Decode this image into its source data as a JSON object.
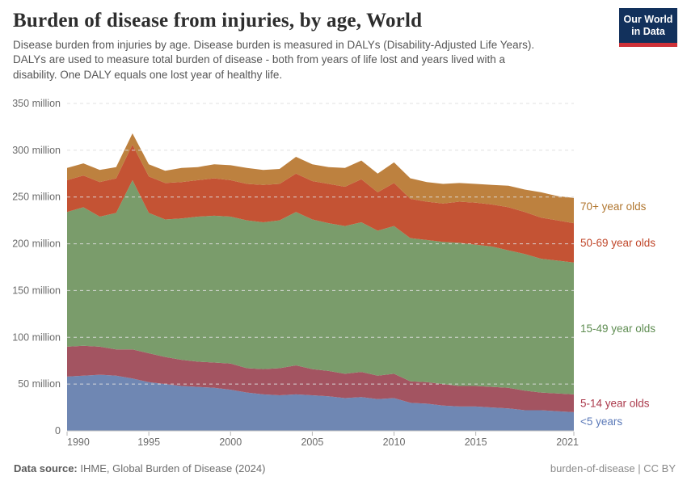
{
  "header": {
    "title": "Burden of disease from injuries, by age, World",
    "subtitle_lines": [
      "Disease burden from injuries by age. Disease burden is measured in DALYs (Disability-Adjusted Life Years).",
      "DALYs are used to measure total burden of disease - both from years of life lost and years lived with a",
      "disability. One DALY equals one lost year of healthy life."
    ],
    "logo": {
      "line1": "Our World",
      "line2": "in Data",
      "bg_color": "#12315c",
      "accent_color": "#ce3138"
    }
  },
  "footer": {
    "datasource_label": "Data source:",
    "datasource_value": " IHME, Global Burden of Disease (2024)",
    "note_right": "burden-of-disease | CC BY"
  },
  "chart_data": {
    "type": "area",
    "stacked": true,
    "title": "Burden of disease from injuries, by age, World",
    "xlabel": "",
    "ylabel": "",
    "values_unit": "million DALYs",
    "grid": "dashed-horizontal",
    "legend_position": "right-edge-labels",
    "ylim": [
      0,
      350
    ],
    "x": [
      1990,
      1991,
      1992,
      1993,
      1994,
      1995,
      1996,
      1997,
      1998,
      1999,
      2000,
      2001,
      2002,
      2003,
      2004,
      2005,
      2006,
      2007,
      2008,
      2009,
      2010,
      2011,
      2012,
      2013,
      2014,
      2015,
      2016,
      2017,
      2018,
      2019,
      2020,
      2021
    ],
    "xticks": [
      1990,
      1995,
      2000,
      2005,
      2010,
      2015,
      2021
    ],
    "yticks": [
      {
        "value": 0,
        "label": "0"
      },
      {
        "value": 50,
        "label": "50 million"
      },
      {
        "value": 100,
        "label": "100 million"
      },
      {
        "value": 150,
        "label": "150 million"
      },
      {
        "value": 200,
        "label": "200 million"
      },
      {
        "value": 250,
        "label": "250 million"
      },
      {
        "value": 300,
        "label": "300 million"
      },
      {
        "value": 350,
        "label": "350 million"
      }
    ],
    "series": [
      {
        "name": "<5 years",
        "color": "#6f87b3",
        "label_color": "#5b79b8",
        "values": [
          58,
          59,
          60,
          59,
          56,
          52,
          50,
          48,
          47,
          46,
          44,
          41,
          39,
          38,
          39,
          38,
          37,
          35,
          36,
          34,
          35,
          30,
          29,
          27,
          26,
          26,
          25,
          24,
          22,
          22,
          21,
          20
        ]
      },
      {
        "name": "5-14 year olds",
        "color": "#a35461",
        "label_color": "#ab3a4c",
        "values": [
          32,
          32,
          30,
          28,
          31,
          31,
          29,
          28,
          27,
          27,
          28,
          26,
          27,
          29,
          31,
          28,
          27,
          26,
          27,
          25,
          26,
          23,
          23,
          23,
          22,
          22,
          22,
          22,
          21,
          19,
          19,
          19
        ]
      },
      {
        "name": "15-49 year olds",
        "color": "#7a9c6b",
        "label_color": "#5f8d52",
        "values": [
          144,
          148,
          139,
          146,
          181,
          150,
          147,
          151,
          155,
          157,
          157,
          158,
          157,
          158,
          164,
          160,
          158,
          158,
          160,
          155,
          158,
          153,
          152,
          152,
          153,
          151,
          150,
          147,
          146,
          143,
          142,
          141
        ]
      },
      {
        "name": "50-69 year olds",
        "color": "#c45334",
        "label_color": "#c0472a",
        "values": [
          34,
          34,
          37,
          37,
          38,
          39,
          39,
          39,
          39,
          40,
          39,
          39,
          40,
          39,
          41,
          41,
          42,
          42,
          46,
          41,
          46,
          42,
          41,
          41,
          44,
          45,
          45,
          46,
          45,
          44,
          43,
          42
        ]
      },
      {
        "name": "70+ year olds",
        "color": "#bd813f",
        "label_color": "#b0762f",
        "values": [
          13,
          13,
          13,
          12,
          12,
          13,
          13,
          15,
          14,
          15,
          16,
          17,
          16,
          16,
          18,
          18,
          18,
          20,
          20,
          20,
          22,
          22,
          21,
          21,
          20,
          20,
          21,
          23,
          24,
          27,
          26,
          27
        ]
      }
    ]
  }
}
